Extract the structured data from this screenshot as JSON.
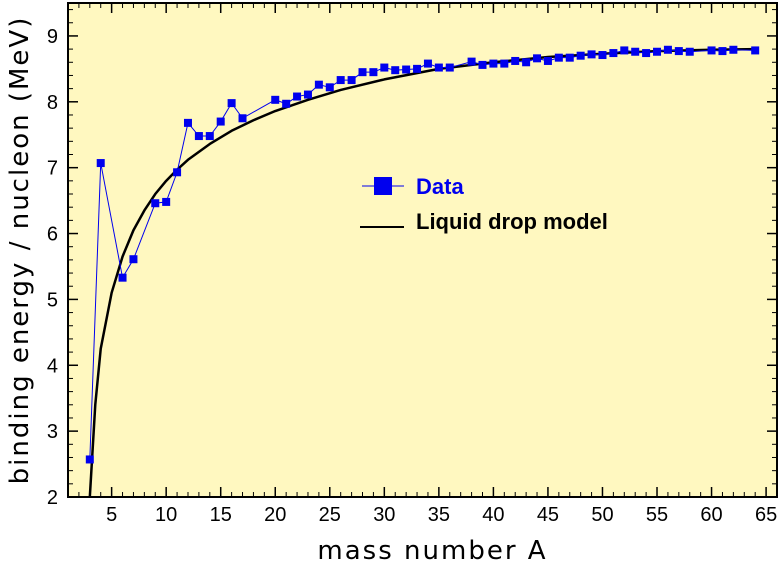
{
  "colors": {
    "background": "#ffffff",
    "plot_background": "#fff8c0",
    "data_series": "#0000ee",
    "model_line": "#000000"
  },
  "chart_data": {
    "type": "line",
    "xlabel": "mass number A",
    "ylabel": "binding energy / nucleon (MeV)",
    "xlim": [
      1,
      66
    ],
    "ylim": [
      2,
      9.5
    ],
    "xticks": [
      5,
      10,
      15,
      20,
      25,
      30,
      35,
      40,
      45,
      50,
      55,
      60,
      65
    ],
    "yticks": [
      2,
      3,
      4,
      5,
      6,
      7,
      8,
      9
    ],
    "grid": false,
    "legend_placement": "center-right",
    "series": [
      {
        "name": "Data",
        "style": "line-with-square-markers",
        "x": [
          3,
          4,
          6,
          7,
          9,
          10,
          11,
          12,
          13,
          14,
          15,
          16,
          17,
          20,
          21,
          22,
          23,
          24,
          25,
          26,
          27,
          28,
          29,
          30,
          31,
          32,
          33,
          34,
          35,
          36,
          38,
          39,
          40,
          41,
          42,
          43,
          44,
          45,
          46,
          47,
          48,
          49,
          50,
          51,
          52,
          53,
          54,
          55,
          56,
          57,
          58,
          60,
          61,
          62,
          64
        ],
        "y": [
          2.57,
          7.07,
          5.33,
          5.61,
          6.46,
          6.48,
          6.93,
          7.68,
          7.48,
          7.48,
          7.7,
          7.98,
          7.75,
          8.03,
          7.97,
          8.08,
          8.11,
          8.26,
          8.22,
          8.33,
          8.33,
          8.45,
          8.45,
          8.52,
          8.48,
          8.49,
          8.5,
          8.58,
          8.52,
          8.52,
          8.61,
          8.56,
          8.58,
          8.58,
          8.62,
          8.6,
          8.66,
          8.62,
          8.67,
          8.67,
          8.7,
          8.72,
          8.71,
          8.74,
          8.78,
          8.76,
          8.74,
          8.76,
          8.79,
          8.77,
          8.76,
          8.78,
          8.77,
          8.79,
          8.78
        ]
      },
      {
        "name": "Liquid drop model",
        "style": "smooth-line",
        "x": [
          3,
          3.5,
          4,
          5,
          6,
          7,
          8,
          9,
          10,
          11,
          12,
          14,
          16,
          18,
          20,
          23,
          26,
          30,
          35,
          40,
          45,
          50,
          55,
          60,
          64
        ],
        "y": [
          2.0,
          3.4,
          4.25,
          5.1,
          5.65,
          6.05,
          6.35,
          6.6,
          6.8,
          6.97,
          7.12,
          7.36,
          7.56,
          7.72,
          7.86,
          8.03,
          8.18,
          8.34,
          8.5,
          8.6,
          8.68,
          8.73,
          8.77,
          8.79,
          8.8
        ]
      }
    ]
  }
}
